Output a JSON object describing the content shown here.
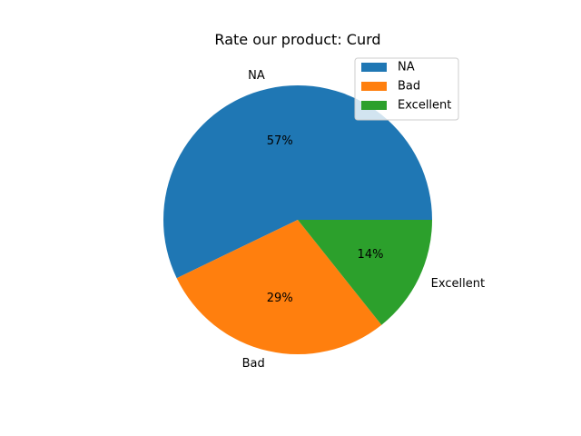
{
  "chart_data": {
    "type": "pie",
    "title": "Rate our product: Curd",
    "categories": [
      "NA",
      "Bad",
      "Excellent"
    ],
    "values": [
      4,
      2,
      1
    ],
    "percent_labels": [
      "57%",
      "29%",
      "14%"
    ],
    "colors": [
      "#1f77b4",
      "#ff7f0e",
      "#2ca02c"
    ],
    "start_angle_deg": 0,
    "direction": "counterclockwise",
    "legend": {
      "placement": "upper right",
      "entries": [
        "NA",
        "Bad",
        "Excellent"
      ]
    }
  }
}
